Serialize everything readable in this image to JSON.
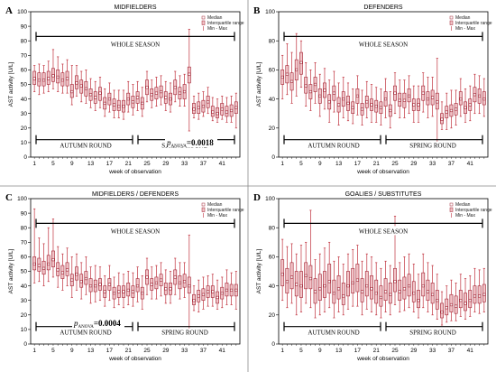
{
  "figure": {
    "colors": {
      "box_fill": "#f2c4c8",
      "box_stroke": "#a02030",
      "whisker": "#c0303c",
      "outlier": "#e06070",
      "first_tick": "#e8a000"
    },
    "week_label_ticks": [
      "1",
      "5",
      "9",
      "13",
      "17",
      "21",
      "25",
      "29",
      "33",
      "37",
      "41"
    ]
  },
  "chart_data": [
    {
      "type": "boxplot",
      "panel": "A",
      "title": "MIDFIELDERS",
      "xlabel": "week of observation",
      "ylabel": "AST activity [U/L]",
      "ylim": [
        0,
        100
      ],
      "yticks": [
        "0",
        "10",
        "20",
        "30",
        "40",
        "50",
        "60",
        "70",
        "80",
        "90",
        "100"
      ],
      "legend": [
        "Median",
        "Interquartile range",
        "Min - Max"
      ],
      "legend_position": "top-right",
      "labels": {
        "whole": "WHOLE SEASON",
        "autumn": "AUTUMN ROUND",
        "spring": "SPRING ROUND"
      },
      "p_value": {
        "p": "p",
        "sub": "ANOVA",
        "value": "=0.0018"
      },
      "weeks": [
        1,
        2,
        3,
        4,
        5,
        6,
        7,
        8,
        9,
        10,
        11,
        12,
        13,
        14,
        15,
        16,
        17,
        18,
        19,
        20,
        21,
        22,
        23,
        24,
        25,
        26,
        27,
        28,
        29,
        30,
        31,
        32,
        33,
        34,
        35,
        36,
        37,
        38,
        39,
        40,
        41,
        42,
        43,
        44
      ],
      "median": [
        54,
        53,
        53,
        54,
        56,
        55,
        53,
        54,
        45,
        51,
        49,
        47,
        43,
        41,
        44,
        37,
        40,
        36,
        35,
        35,
        40,
        38,
        41,
        37,
        48,
        43,
        44,
        45,
        41,
        40,
        48,
        44,
        45,
        57,
        33,
        34,
        35,
        38,
        31,
        30,
        33,
        31,
        32,
        34
      ],
      "q1": [
        50,
        49,
        49,
        50,
        52,
        51,
        49,
        49,
        41,
        47,
        44,
        42,
        39,
        37,
        39,
        33,
        36,
        32,
        32,
        31,
        36,
        34,
        37,
        33,
        43,
        39,
        40,
        41,
        37,
        36,
        43,
        40,
        40,
        51,
        30,
        30,
        31,
        34,
        28,
        27,
        29,
        28,
        28,
        30
      ],
      "q3": [
        59,
        58,
        58,
        59,
        61,
        60,
        58,
        59,
        50,
        56,
        53,
        52,
        47,
        45,
        48,
        41,
        44,
        40,
        39,
        39,
        44,
        42,
        45,
        41,
        53,
        47,
        48,
        49,
        45,
        44,
        53,
        48,
        50,
        62,
        37,
        38,
        39,
        42,
        35,
        34,
        37,
        35,
        36,
        38
      ],
      "min": [
        45,
        43,
        44,
        45,
        47,
        45,
        44,
        44,
        36,
        42,
        38,
        37,
        34,
        32,
        34,
        28,
        31,
        27,
        27,
        26,
        31,
        29,
        32,
        28,
        38,
        34,
        35,
        36,
        32,
        31,
        38,
        35,
        35,
        18,
        27,
        26,
        28,
        30,
        25,
        24,
        26,
        24,
        24,
        20
      ],
      "max": [
        63,
        64,
        63,
        66,
        74,
        69,
        64,
        67,
        63,
        63,
        59,
        60,
        54,
        52,
        55,
        47,
        51,
        46,
        46,
        46,
        52,
        50,
        52,
        48,
        59,
        53,
        55,
        56,
        52,
        51,
        59,
        56,
        57,
        88,
        42,
        44,
        45,
        48,
        41,
        40,
        42,
        41,
        42,
        44
      ]
    },
    {
      "type": "boxplot",
      "panel": "B",
      "title": "DEFENDERS",
      "xlabel": "week of observation",
      "ylabel": "AST activity [U/L]",
      "ylim": [
        0,
        100
      ],
      "yticks": [
        "0",
        "20",
        "40",
        "60",
        "80",
        "100"
      ],
      "legend": [
        "Median",
        "Interquartile range",
        "Min - Max"
      ],
      "legend_position": "top-right",
      "labels": {
        "whole": "WHOLE SEASON",
        "autumn": "AUTUMN ROUND",
        "spring": "SPRING ROUND"
      },
      "weeks": [
        1,
        2,
        3,
        4,
        5,
        6,
        7,
        8,
        9,
        10,
        11,
        12,
        13,
        14,
        15,
        16,
        17,
        18,
        19,
        20,
        21,
        22,
        23,
        24,
        25,
        26,
        27,
        28,
        29,
        30,
        31,
        32,
        33,
        34,
        35,
        36,
        37,
        38,
        39,
        40,
        41,
        42,
        43,
        44
      ],
      "median": [
        55,
        57,
        52,
        60,
        65,
        49,
        45,
        50,
        42,
        46,
        38,
        44,
        36,
        40,
        37,
        34,
        42,
        33,
        38,
        36,
        35,
        34,
        40,
        32,
        44,
        39,
        39,
        42,
        36,
        36,
        44,
        40,
        41,
        38,
        26,
        31,
        32,
        33,
        40,
        34,
        36,
        43,
        42,
        40
      ],
      "q1": [
        50,
        51,
        46,
        53,
        57,
        44,
        40,
        45,
        37,
        41,
        33,
        39,
        31,
        35,
        32,
        30,
        37,
        29,
        34,
        32,
        31,
        30,
        35,
        28,
        39,
        35,
        34,
        38,
        32,
        32,
        39,
        36,
        36,
        33,
        23,
        27,
        28,
        29,
        36,
        30,
        32,
        38,
        37,
        36
      ],
      "q3": [
        60,
        63,
        58,
        67,
        72,
        55,
        50,
        55,
        47,
        51,
        43,
        49,
        41,
        45,
        42,
        38,
        47,
        37,
        42,
        40,
        39,
        38,
        45,
        36,
        49,
        44,
        44,
        47,
        40,
        40,
        49,
        45,
        46,
        44,
        30,
        35,
        36,
        37,
        45,
        38,
        40,
        48,
        47,
        45
      ],
      "min": [
        40,
        43,
        37,
        42,
        48,
        35,
        32,
        37,
        28,
        33,
        24,
        31,
        22,
        27,
        25,
        23,
        29,
        22,
        27,
        24,
        24,
        22,
        27,
        20,
        30,
        27,
        27,
        30,
        24,
        24,
        31,
        27,
        28,
        8,
        19,
        19,
        20,
        22,
        28,
        24,
        25,
        30,
        30,
        28
      ],
      "max": [
        70,
        78,
        72,
        85,
        80,
        65,
        60,
        65,
        57,
        61,
        53,
        59,
        51,
        55,
        51,
        47,
        56,
        46,
        52,
        50,
        48,
        47,
        54,
        45,
        58,
        53,
        53,
        56,
        49,
        49,
        58,
        55,
        55,
        68,
        38,
        44,
        46,
        46,
        54,
        47,
        49,
        57,
        56,
        54
      ]
    },
    {
      "type": "boxplot",
      "panel": "C",
      "title": "MIDFIELDERS / DEFENDERS",
      "xlabel": "week of observation",
      "ylabel": "AST activity [U/L]",
      "ylim": [
        0,
        100
      ],
      "yticks": [
        "0",
        "10",
        "20",
        "30",
        "40",
        "50",
        "60",
        "70",
        "80",
        "90",
        "100"
      ],
      "legend": [
        "Median",
        "Interquartile range",
        "Min - Max"
      ],
      "legend_position": "top-right",
      "labels": {
        "whole": "WHOLE SEASON",
        "autumn": "AUTUMN ROUND",
        "spring": "SPRING ROUND"
      },
      "p_value": {
        "p": "p",
        "sub": "ANOVA",
        "value": "=0.0004"
      },
      "weeks": [
        1,
        2,
        3,
        4,
        5,
        6,
        7,
        8,
        9,
        10,
        11,
        12,
        13,
        14,
        15,
        16,
        17,
        18,
        19,
        20,
        21,
        22,
        23,
        24,
        25,
        26,
        27,
        28,
        29,
        30,
        31,
        32,
        33,
        34,
        35,
        36,
        37,
        38,
        39,
        40,
        41,
        42,
        43,
        44
      ],
      "median": [
        55,
        54,
        52,
        55,
        58,
        51,
        49,
        51,
        44,
        48,
        43,
        45,
        40,
        40,
        41,
        36,
        41,
        35,
        36,
        36,
        37,
        36,
        40,
        35,
        46,
        41,
        42,
        44,
        38,
        38,
        46,
        42,
        43,
        40,
        30,
        33,
        34,
        36,
        36,
        32,
        35,
        37,
        37,
        37
      ],
      "q1": [
        51,
        50,
        48,
        51,
        53,
        47,
        45,
        47,
        40,
        44,
        39,
        41,
        36,
        36,
        37,
        32,
        37,
        31,
        32,
        32,
        33,
        32,
        36,
        31,
        41,
        37,
        38,
        40,
        34,
        34,
        41,
        38,
        39,
        35,
        27,
        29,
        30,
        32,
        32,
        28,
        31,
        33,
        33,
        33
      ],
      "q3": [
        60,
        59,
        57,
        61,
        64,
        56,
        54,
        56,
        48,
        53,
        48,
        50,
        45,
        44,
        45,
        40,
        45,
        39,
        40,
        40,
        42,
        40,
        45,
        39,
        51,
        45,
        46,
        48,
        42,
        42,
        51,
        47,
        48,
        46,
        34,
        37,
        38,
        40,
        40,
        36,
        39,
        42,
        41,
        41
      ],
      "min": [
        42,
        43,
        40,
        43,
        46,
        39,
        37,
        40,
        32,
        37,
        31,
        34,
        28,
        29,
        30,
        26,
        30,
        25,
        27,
        25,
        27,
        26,
        29,
        24,
        34,
        31,
        31,
        33,
        28,
        28,
        34,
        31,
        32,
        8,
        23,
        22,
        24,
        26,
        26,
        24,
        25,
        27,
        27,
        24
      ],
      "max": [
        93,
        73,
        69,
        80,
        86,
        67,
        62,
        66,
        60,
        62,
        56,
        60,
        53,
        54,
        53,
        47,
        54,
        46,
        49,
        48,
        50,
        49,
        53,
        47,
        59,
        53,
        54,
        56,
        51,
        50,
        59,
        56,
        56,
        75,
        40,
        44,
        46,
        47,
        48,
        44,
        46,
        51,
        49,
        50
      ]
    },
    {
      "type": "boxplot",
      "panel": "D",
      "title": "GOALIES / SUBSTITUTES",
      "xlabel": "week of observation",
      "ylabel": "AST activity [U/L]",
      "ylim": [
        0,
        100
      ],
      "yticks": [
        "0",
        "20",
        "40",
        "60",
        "80",
        "100"
      ],
      "legend": [
        "Median",
        "Interquartile range",
        "Min - Max"
      ],
      "legend_position": "top-right",
      "labels": {
        "whole": "WHOLE SEASON",
        "autumn": "AUTUMN ROUND",
        "spring": "SPRING ROUND"
      },
      "weeks": [
        1,
        2,
        3,
        4,
        5,
        6,
        7,
        8,
        9,
        10,
        11,
        12,
        13,
        14,
        15,
        16,
        17,
        18,
        19,
        20,
        21,
        22,
        23,
        24,
        25,
        26,
        27,
        28,
        29,
        30,
        31,
        32,
        33,
        34,
        35,
        36,
        37,
        38,
        39,
        40,
        41,
        42,
        43,
        44
      ],
      "median": [
        48,
        43,
        46,
        41,
        40,
        47,
        45,
        36,
        38,
        40,
        43,
        35,
        38,
        33,
        40,
        42,
        44,
        36,
        40,
        38,
        35,
        32,
        36,
        34,
        43,
        36,
        38,
        40,
        35,
        30,
        40,
        36,
        34,
        30,
        22,
        25,
        27,
        26,
        30,
        28,
        30,
        33,
        33,
        34
      ],
      "q1": [
        40,
        35,
        38,
        33,
        32,
        38,
        38,
        28,
        30,
        32,
        35,
        28,
        31,
        27,
        33,
        35,
        36,
        29,
        33,
        31,
        28,
        26,
        30,
        28,
        36,
        30,
        31,
        33,
        29,
        25,
        33,
        30,
        28,
        24,
        18,
        20,
        22,
        21,
        25,
        23,
        25,
        28,
        28,
        29
      ],
      "q3": [
        58,
        52,
        56,
        50,
        50,
        56,
        54,
        45,
        48,
        50,
        55,
        44,
        47,
        42,
        50,
        52,
        55,
        45,
        50,
        47,
        44,
        40,
        45,
        42,
        52,
        44,
        46,
        48,
        43,
        37,
        49,
        44,
        42,
        37,
        28,
        31,
        34,
        33,
        37,
        35,
        37,
        40,
        40,
        41
      ],
      "min": [
        30,
        25,
        28,
        20,
        22,
        28,
        25,
        18,
        20,
        22,
        25,
        18,
        22,
        20,
        24,
        26,
        26,
        20,
        24,
        22,
        20,
        18,
        22,
        20,
        27,
        22,
        23,
        25,
        22,
        18,
        25,
        22,
        20,
        17,
        13,
        15,
        16,
        16,
        19,
        17,
        19,
        22,
        21,
        22
      ],
      "max": [
        72,
        67,
        69,
        62,
        68,
        70,
        92,
        58,
        62,
        66,
        70,
        57,
        60,
        55,
        62,
        65,
        68,
        57,
        62,
        60,
        56,
        52,
        57,
        54,
        88,
        56,
        60,
        62,
        55,
        48,
        62,
        56,
        54,
        48,
        36,
        40,
        44,
        42,
        48,
        45,
        47,
        52,
        51,
        52
      ]
    }
  ]
}
